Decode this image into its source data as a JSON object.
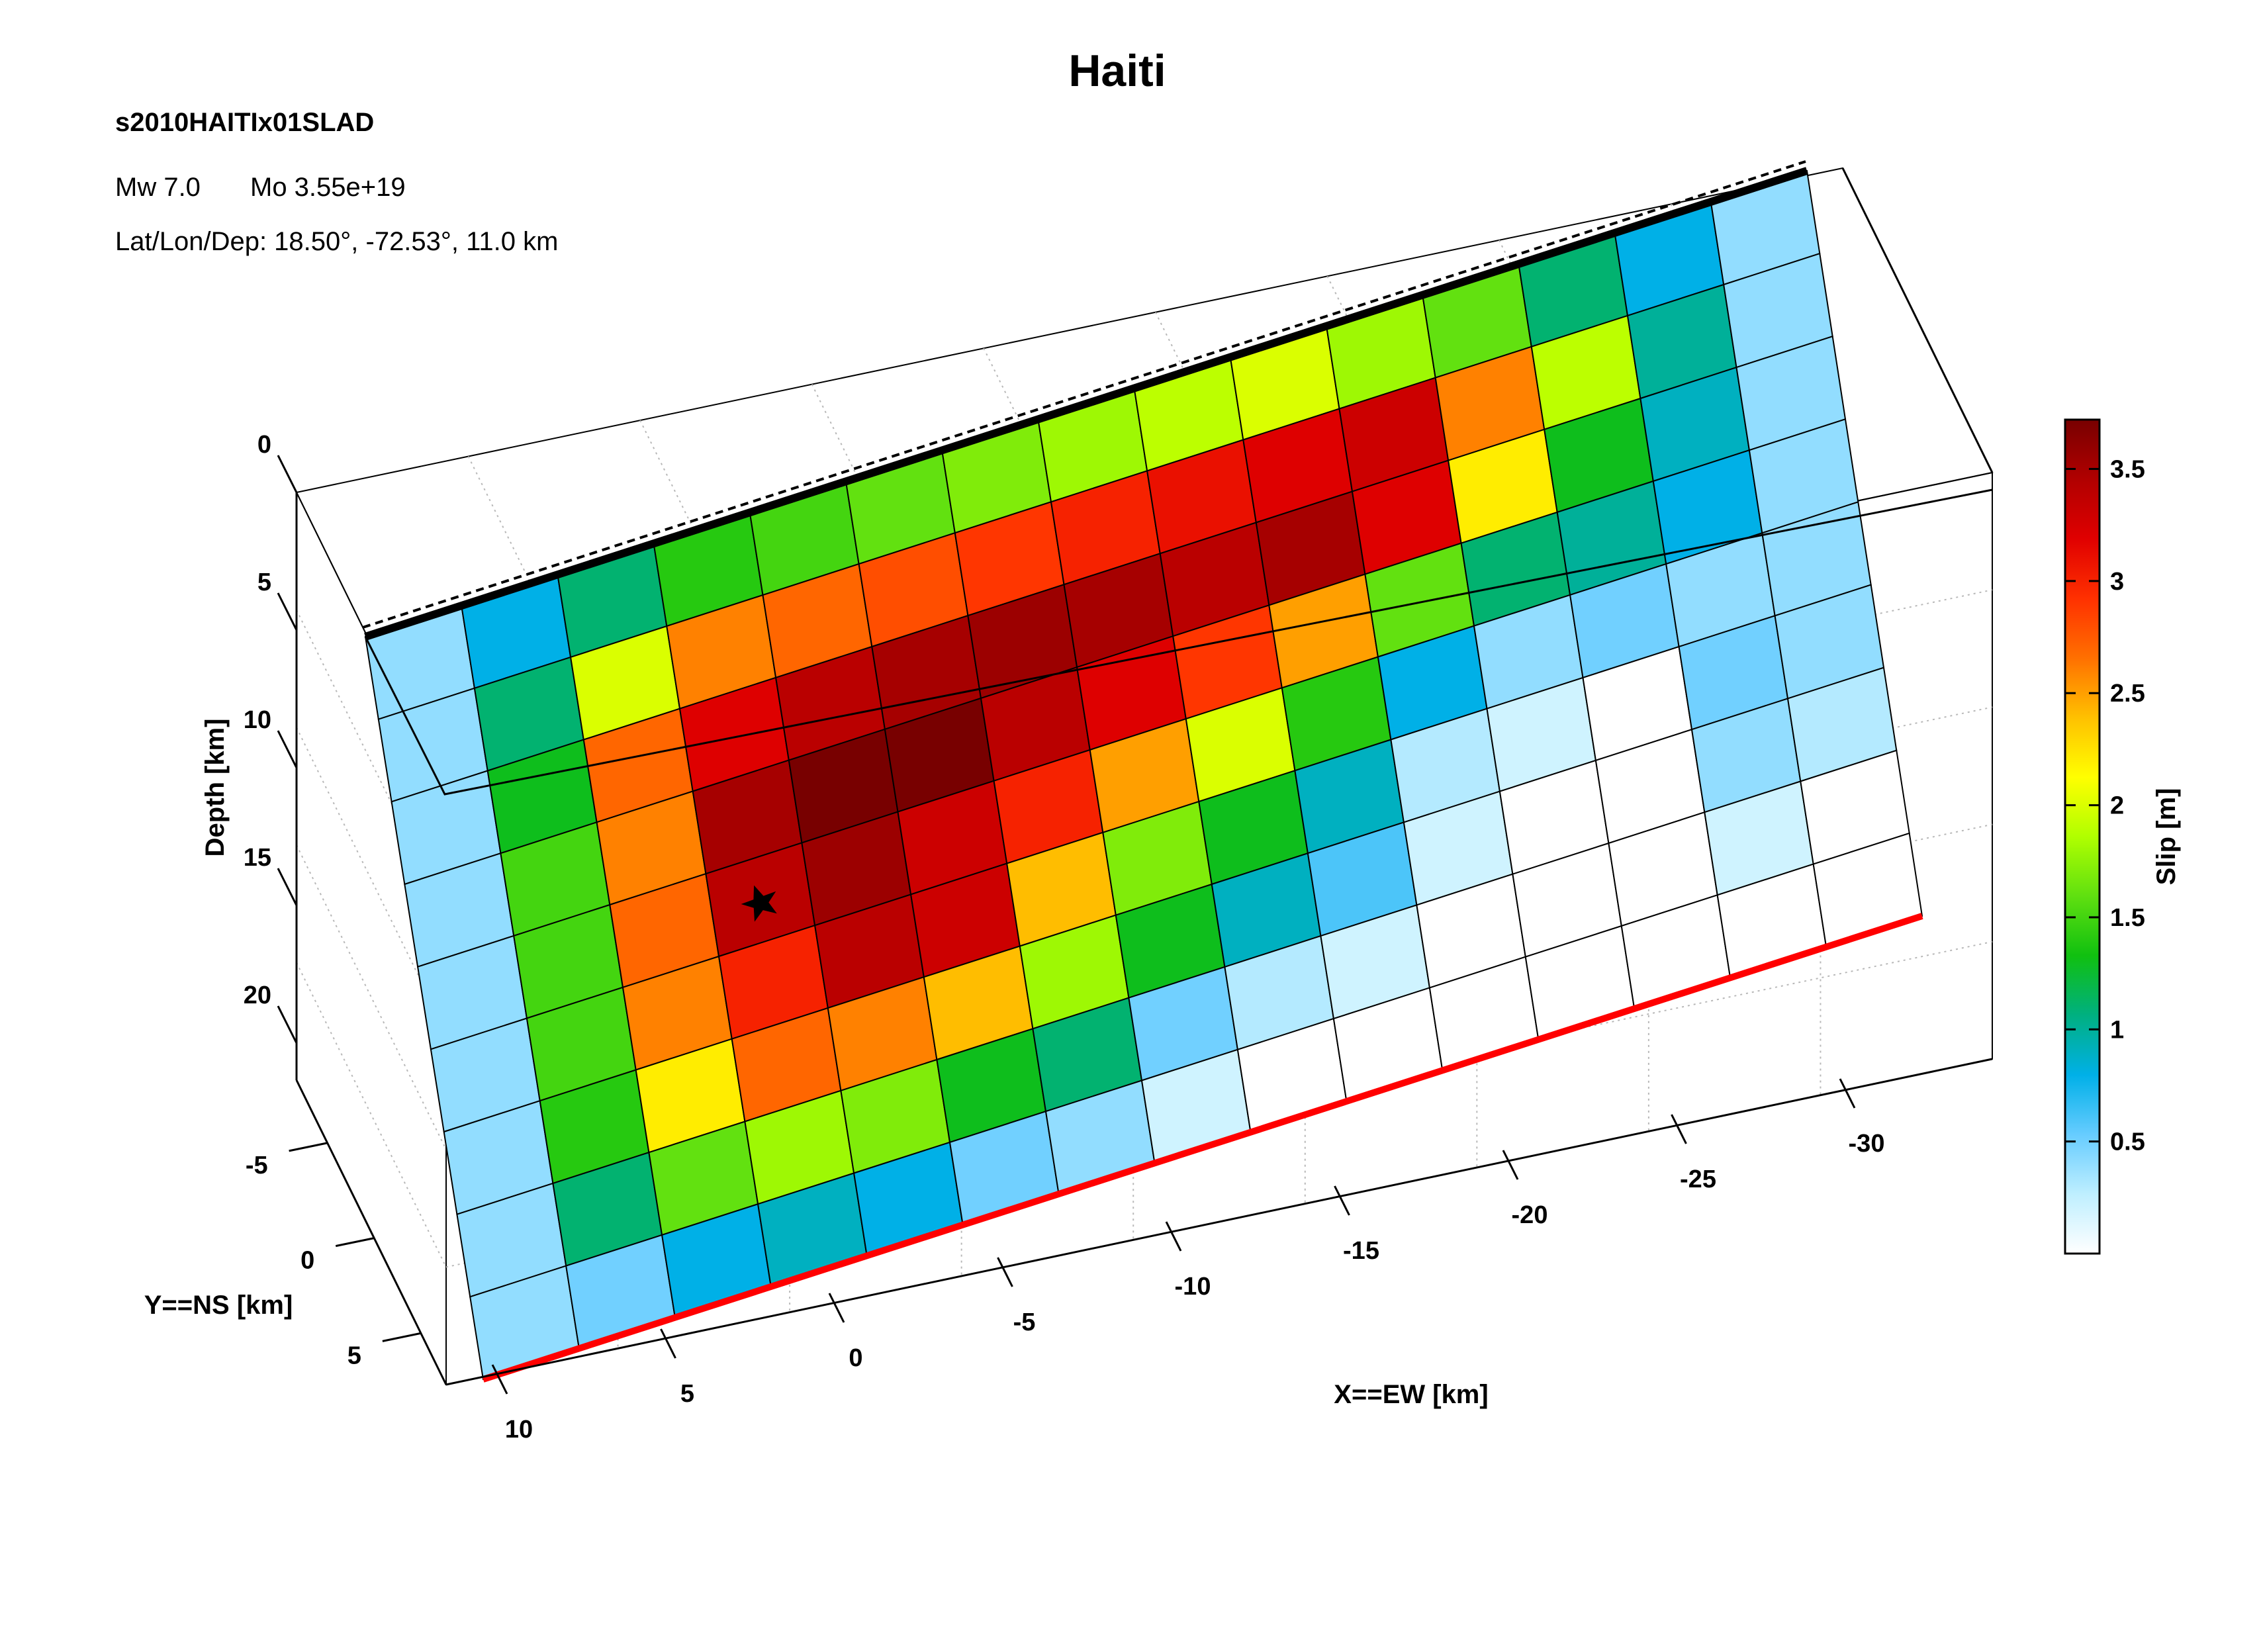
{
  "header": {
    "title": "Haiti",
    "event_id": "s2010HAITIx01SLAD",
    "mw_label": "Mw 7.0",
    "mo_label": "Mo 3.55e+19",
    "latlondep_label": "Lat/Lon/Dep: 18.50°, -72.53°, 11.0 km"
  },
  "chart_data": {
    "type": "heatmap",
    "title": "Haiti",
    "x_label": "X==EW [km]",
    "y_label": "Y==NS [km]",
    "z_label": "Depth [km]",
    "x_ticks": [
      "10",
      "5",
      "0",
      "-5",
      "-10",
      "-15",
      "-20",
      "-25",
      "-30"
    ],
    "y_ticks": [
      "-5",
      "0",
      "5"
    ],
    "z_ticks": [
      "0",
      "5",
      "10",
      "15",
      "20"
    ],
    "colorbar": {
      "label": "Slip [m]",
      "range": [
        0,
        3.72
      ],
      "ticks": [
        "0.5",
        "1",
        "1.5",
        "2",
        "2.5",
        "3",
        "3.5"
      ],
      "colors": [
        "#ffffff",
        "#bfefff",
        "#66ccff",
        "#00b0e8",
        "#00b080",
        "#10c010",
        "#60e010",
        "#b0ff00",
        "#ffff00",
        "#ffc000",
        "#ff7000",
        "#ff3000",
        "#e00000",
        "#b00000",
        "#780000"
      ]
    },
    "fault_top_color": "#000000",
    "fault_bottom_color": "#ff0000",
    "hypocenter_marker": "star",
    "grid_note": "Slip [m] per subfault; rows from fault top (row 0) to bottom (row 8); columns from East (X=10 km) to West (X=-30 km).",
    "slip": [
      [
        0.4,
        0.8,
        1.1,
        1.4,
        1.5,
        1.6,
        1.7,
        1.8,
        1.9,
        2.0,
        1.8,
        1.6,
        1.1,
        0.8,
        0.4
      ],
      [
        0.4,
        1.1,
        2.0,
        2.6,
        2.7,
        2.8,
        2.9,
        3.0,
        3.1,
        3.2,
        3.3,
        2.6,
        1.9,
        1.0,
        0.4
      ],
      [
        0.4,
        1.3,
        2.7,
        3.2,
        3.4,
        3.5,
        3.55,
        3.5,
        3.4,
        3.5,
        3.2,
        2.2,
        1.3,
        0.9,
        0.4
      ],
      [
        0.4,
        1.5,
        2.6,
        3.5,
        3.72,
        3.72,
        3.4,
        3.2,
        2.9,
        2.5,
        1.6,
        1.1,
        1.0,
        0.8,
        0.4
      ],
      [
        0.4,
        1.5,
        2.7,
        3.4,
        3.55,
        3.3,
        3.0,
        2.5,
        2.0,
        1.4,
        0.8,
        0.4,
        0.5,
        0.4,
        0.4
      ],
      [
        0.4,
        1.5,
        2.6,
        3.0,
        3.4,
        3.3,
        2.4,
        1.7,
        1.3,
        0.9,
        0.3,
        0.2,
        0.0,
        0.5,
        0.4
      ],
      [
        0.4,
        1.4,
        2.2,
        2.7,
        2.6,
        2.4,
        1.8,
        1.3,
        0.9,
        0.6,
        0.2,
        0.0,
        0.0,
        0.4,
        0.3
      ],
      [
        0.4,
        1.1,
        1.6,
        1.8,
        1.7,
        1.3,
        1.1,
        0.5,
        0.3,
        0.2,
        0.0,
        0.0,
        0.0,
        0.2,
        0.0
      ],
      [
        0.4,
        0.5,
        0.8,
        0.9,
        0.8,
        0.5,
        0.4,
        0.2,
        0.0,
        0.0,
        0.0,
        0.0,
        0.0,
        0.0,
        0.0
      ]
    ]
  }
}
